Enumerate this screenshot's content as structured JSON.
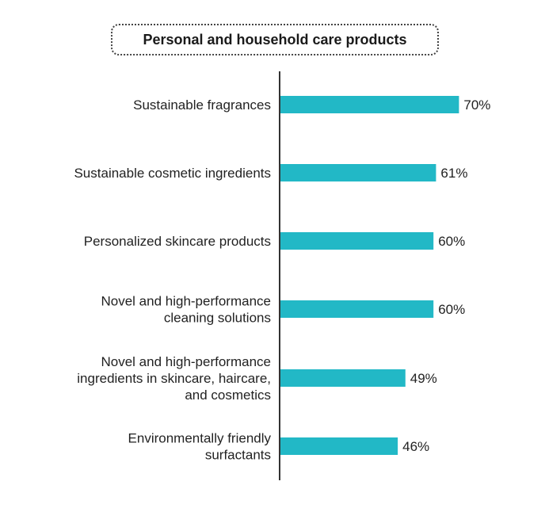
{
  "chart_data": {
    "type": "bar",
    "orientation": "horizontal",
    "title": "Personal and household care products",
    "categories": [
      "Sustainable fragrances",
      "Sustainable cosmetic ingredients",
      "Personalized skincare products",
      "Novel and high-performance cleaning solutions",
      "Novel and high-performance ingredients in skincare, haircare, and cosmetics",
      "Environmentally friendly surfactants"
    ],
    "category_lines": [
      [
        "Sustainable fragrances"
      ],
      [
        "Sustainable cosmetic ingredients"
      ],
      [
        "Personalized skincare products"
      ],
      [
        "Novel and high-performance",
        "cleaning solutions"
      ],
      [
        "Novel and high-performance",
        "ingredients in skincare, haircare,",
        "and cosmetics"
      ],
      [
        "Environmentally friendly",
        "surfactants"
      ]
    ],
    "values": [
      70,
      61,
      60,
      60,
      49,
      46
    ],
    "value_labels": [
      "70%",
      "61%",
      "60%",
      "60%",
      "49%",
      "46%"
    ],
    "unit": "%",
    "xlim": [
      0,
      100
    ],
    "grid": false,
    "bar_color": "#22b8c6"
  }
}
